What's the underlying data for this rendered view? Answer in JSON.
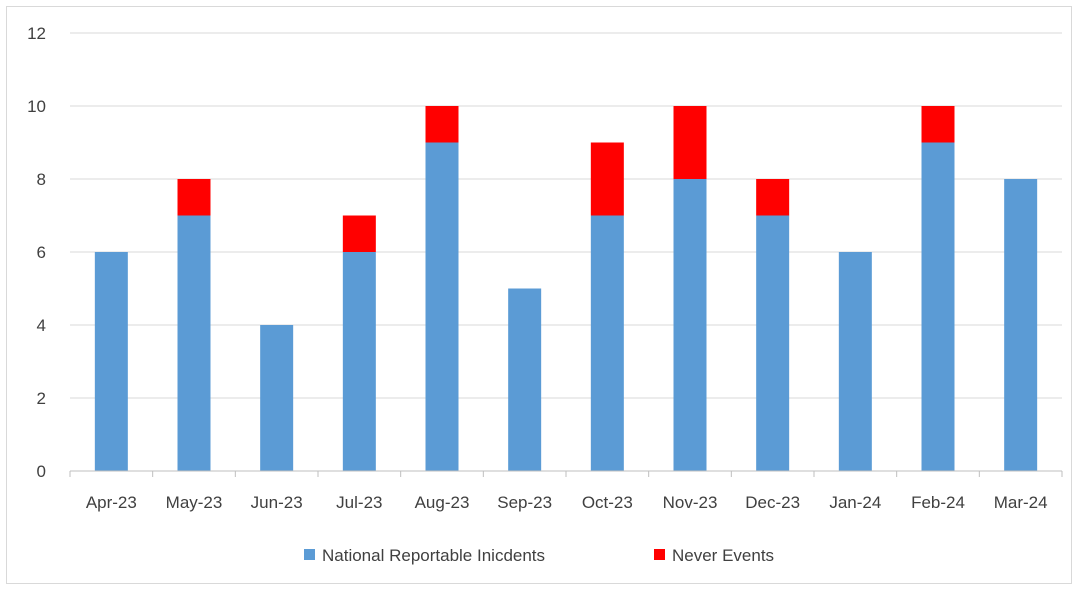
{
  "chart_data": {
    "type": "bar",
    "stacked": true,
    "categories": [
      "Apr-23",
      "May-23",
      "Jun-23",
      "Jul-23",
      "Aug-23",
      "Sep-23",
      "Oct-23",
      "Nov-23",
      "Dec-23",
      "Jan-24",
      "Feb-24",
      "Mar-24"
    ],
    "series": [
      {
        "name": "National Reportable Inicdents",
        "color": "#5b9bd5",
        "values": [
          6,
          7,
          4,
          6,
          9,
          5,
          7,
          8,
          7,
          6,
          9,
          8
        ]
      },
      {
        "name": "Never Events",
        "color": "#ff0000",
        "values": [
          0,
          1,
          0,
          1,
          1,
          0,
          2,
          2,
          1,
          0,
          1,
          0
        ]
      }
    ],
    "ylim": [
      0,
      12
    ],
    "yticks": [
      0,
      2,
      4,
      6,
      8,
      10,
      12
    ],
    "grid": true,
    "legend": "bottom-center"
  }
}
